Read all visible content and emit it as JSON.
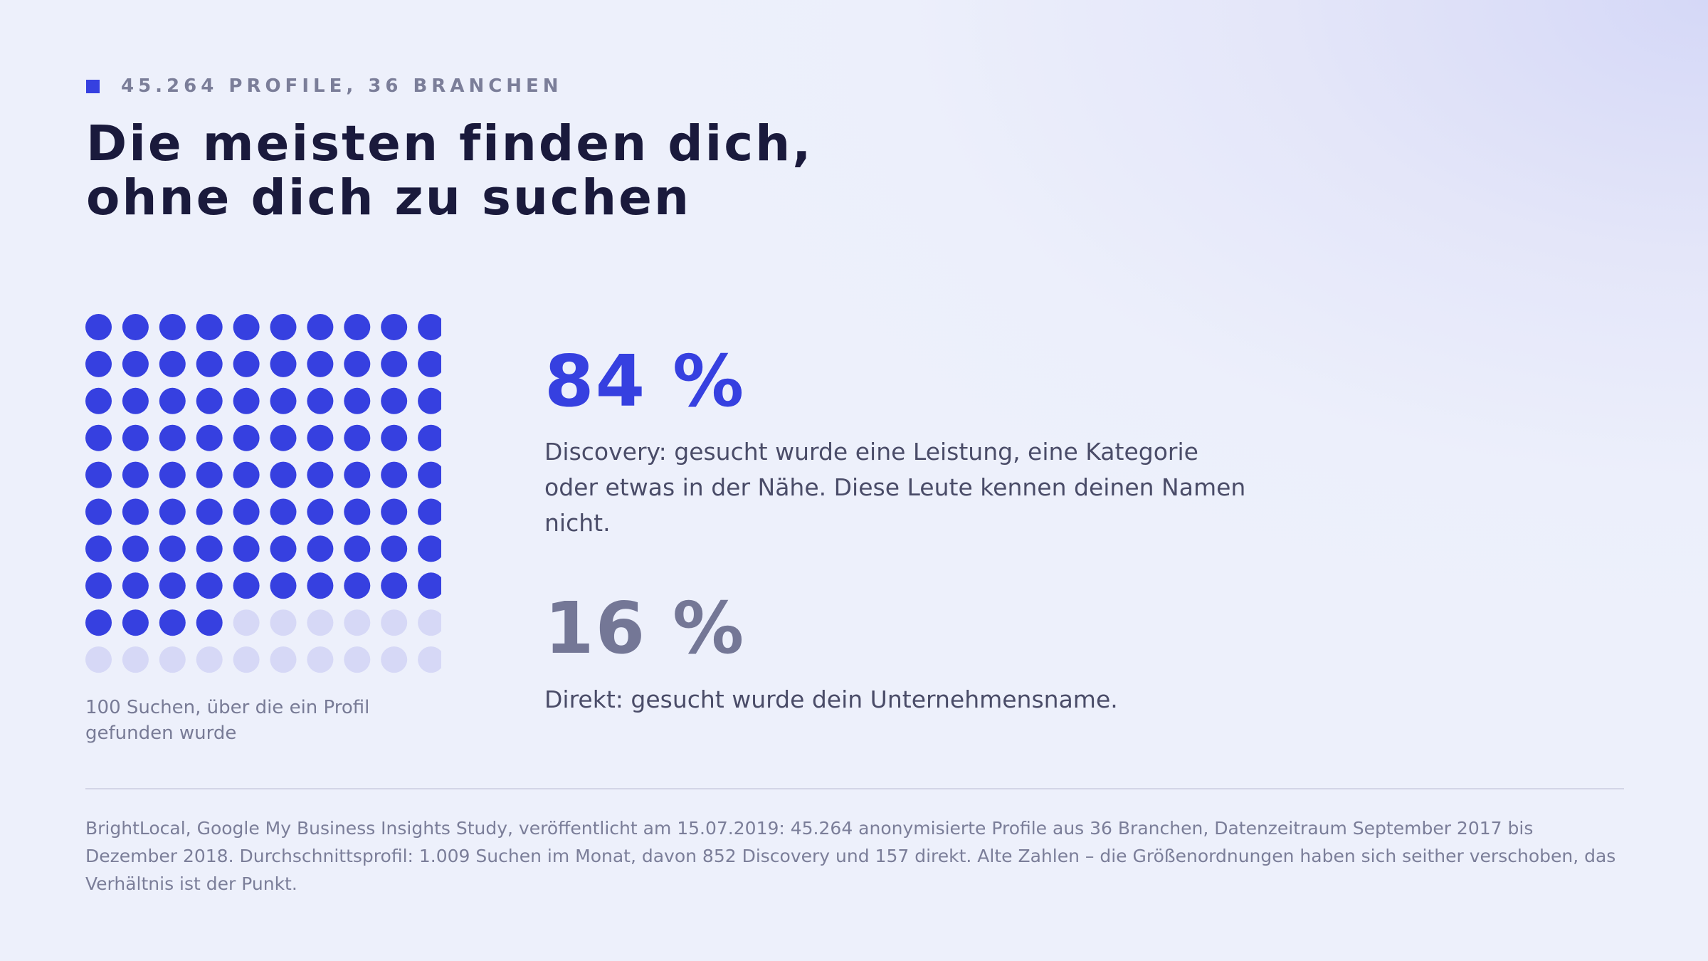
{
  "header": {
    "kicker": "45.264 PROFILE, 36 BRANCHEN",
    "title_line1": "Die meisten finden dich,",
    "title_line2": "ohne dich zu suchen"
  },
  "chart_data": {
    "type": "waffle",
    "total": 100,
    "rows": 10,
    "columns": 10,
    "filled": 84,
    "caption": "100 Suchen, über die ein Profil gefunden wurde",
    "colors": {
      "filled": "#3640e0",
      "empty": "#d6d8f6"
    }
  },
  "stats": [
    {
      "value": "84 %",
      "description": "Discovery: gesucht wurde eine Leistung, eine Kategorie oder etwas in der Nähe. Diese Leute kennen deinen Namen nicht.",
      "color": "#3640e0"
    },
    {
      "value": "16 %",
      "description": "Direkt: gesucht wurde dein Unternehmensname.",
      "color": "#747796"
    }
  ],
  "source": "BrightLocal, Google My Business Insights Study, veröffentlicht am 15.07.2019: 45.264 anonymisierte Profile aus 36 Branchen, Datenzeitraum September 2017 bis Dezember 2018. Durchschnittsprofil: 1.009 Suchen im Monat, davon 852 Discovery und 157 direkt. Alte Zahlen – die Größenordnungen haben sich seither verschoben, das Verhältnis ist der Punkt."
}
